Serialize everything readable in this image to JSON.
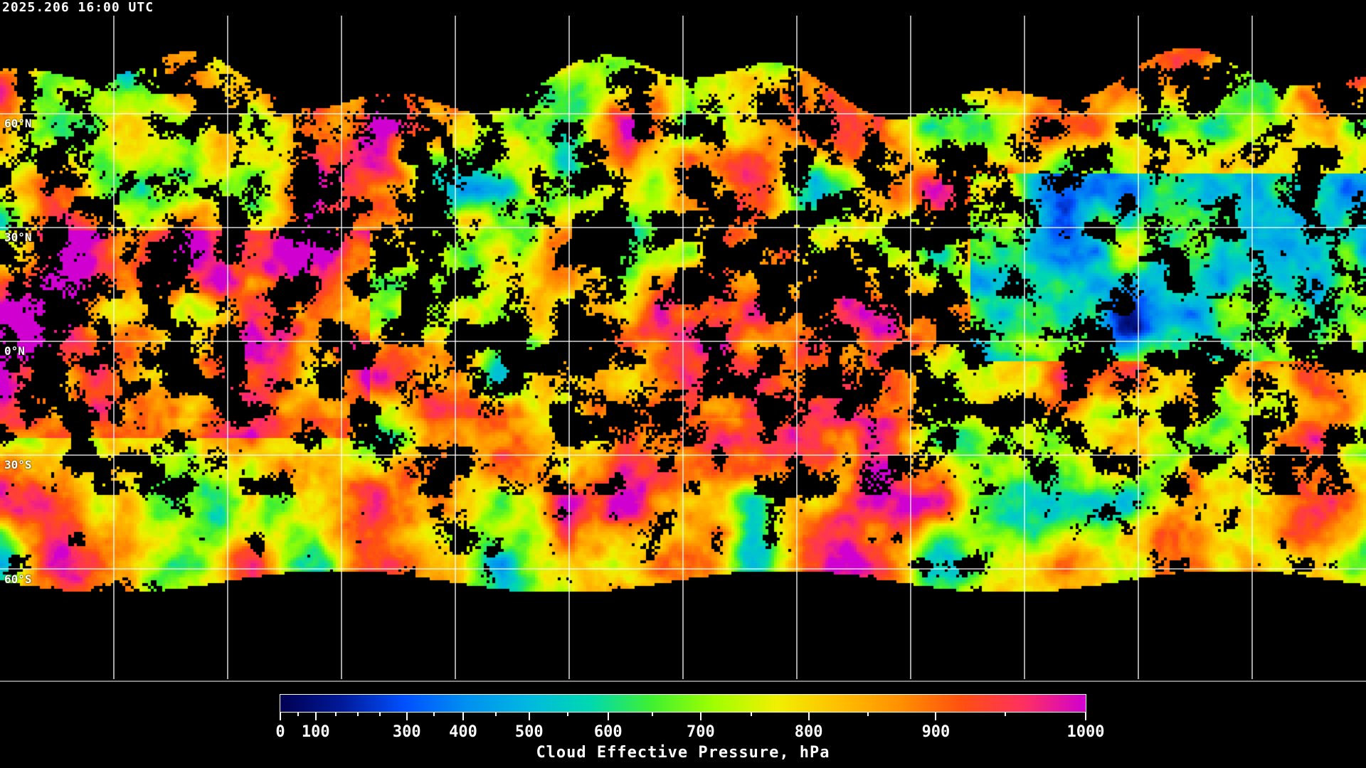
{
  "timestamp": "2025.206 16:00 UTC",
  "map": {
    "projection": "equirectangular",
    "graticule_spacing_deg": 30,
    "lat_labels": [
      "60°N",
      "30°N",
      "0°N",
      "30°S",
      "60°S"
    ]
  },
  "colorbar": {
    "title": "Cloud Effective Pressure, hPa",
    "range": [
      0,
      1000
    ],
    "major_ticks": [
      "0",
      "100",
      "300",
      "400",
      "500",
      "600",
      "700",
      "800",
      "900",
      "1000"
    ],
    "colors": [
      "#000050",
      "#001a9a",
      "#0050ff",
      "#0090f0",
      "#00b8e0",
      "#00d8b0",
      "#40f030",
      "#a0ff00",
      "#f0f000",
      "#ffc000",
      "#ff9000",
      "#ff5010",
      "#ff3060",
      "#d000d0"
    ]
  }
}
